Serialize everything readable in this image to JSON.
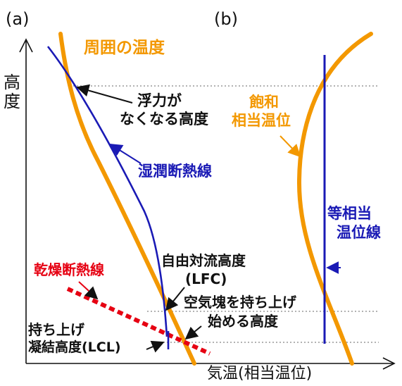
{
  "panel_a_label": "(a)",
  "panel_b_label": "(b)",
  "y_axis_label": [
    "高",
    "度"
  ],
  "x_axis_label": "気温(相当温位)",
  "labels": {
    "ambient_temp": "周囲の温度",
    "buoyancy_lost_1": "浮力が",
    "buoyancy_lost_2": "なくなる高度",
    "moist_adiabat": "湿潤断熱線",
    "saturated_theta_e_1": "飽和",
    "saturated_theta_e_2": "相当温位",
    "equal_theta_e_1": "等相当",
    "equal_theta_e_2": "温位線",
    "lfc_1": "自由対流高度",
    "lfc_2": "(LFC)",
    "dry_adiabat": "乾燥断熱線",
    "parcel_lift_1": "空気塊を持ち上げ",
    "parcel_lift_2": "始める高度",
    "lcl_1": "持ち上げ",
    "lcl_2": "凝結高度(LCL)"
  },
  "colors": {
    "orange": "#F39800",
    "blue": "#1A1AB5",
    "red": "#E60012",
    "black": "#111111",
    "dotted": "#666666"
  }
}
